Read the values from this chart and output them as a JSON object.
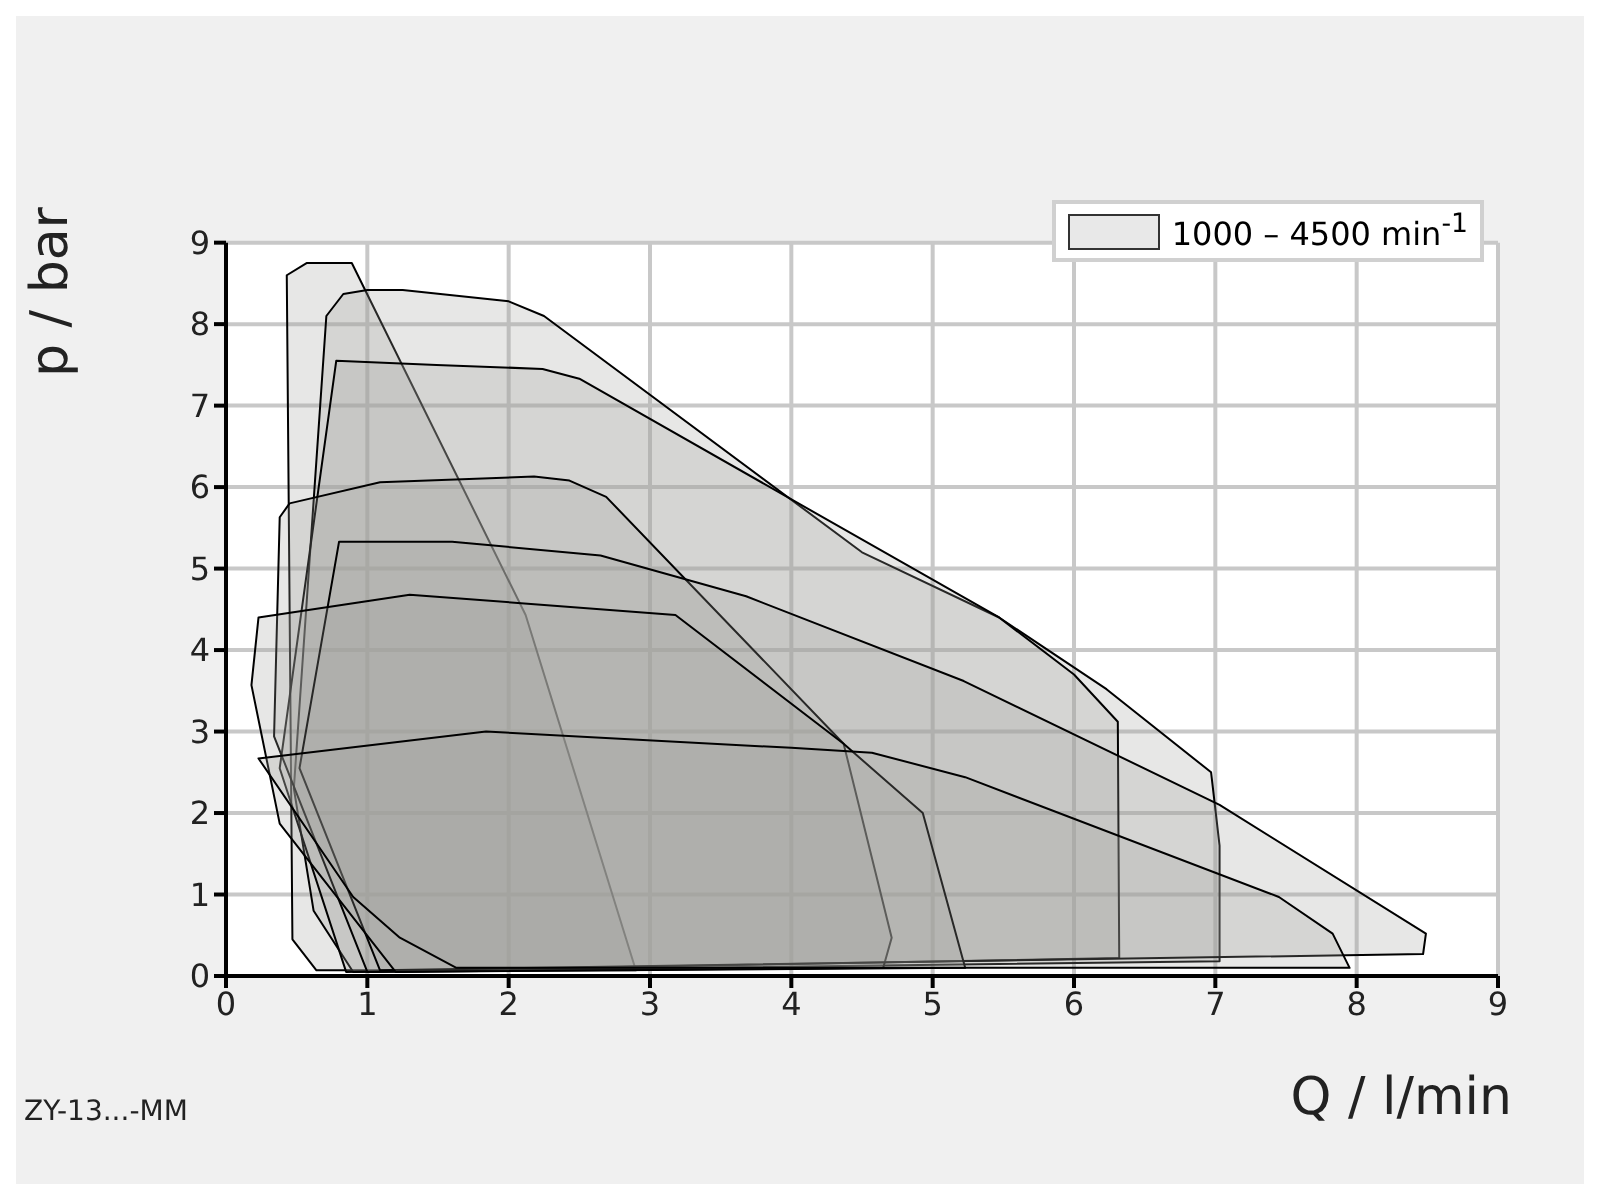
{
  "chart_data": {
    "type": "area",
    "xlabel": "Q / l/min",
    "ylabel": "p / bar",
    "annotations": [
      "ZY-13...-MM"
    ],
    "xlim": [
      0,
      9
    ],
    "ylim": [
      0,
      9
    ],
    "xticks": [
      0,
      1,
      2,
      3,
      4,
      5,
      6,
      7,
      8,
      9
    ],
    "yticks": [
      0,
      1,
      2,
      3,
      4,
      5,
      6,
      7,
      8,
      9
    ],
    "grid": true,
    "legend": "top right",
    "series": [
      {
        "name": "1000 – 4500 min$^{-1}$",
        "color": "#a0a09a",
        "x": [
          0.64,
          0.47,
          0.43,
          0.57,
          0.89,
          2.12,
          2.9
        ],
        "values": [
          0.07,
          0.45,
          8.6,
          8.75,
          8.75,
          4.43,
          0.07
        ]
      },
      {
        "color": "#a0a09a",
        "x": [
          0.9,
          0.62,
          0.48,
          0.71,
          0.83,
          1.0,
          1.25,
          2.0,
          2.25,
          4.5,
          5.47,
          6.23,
          6.97,
          7.03,
          7.03
        ],
        "values": [
          0.05,
          0.8,
          2.3,
          8.1,
          8.37,
          8.42,
          8.42,
          8.28,
          8.1,
          5.2,
          4.4,
          3.52,
          2.5,
          1.6,
          0.18
        ]
      },
      {
        "color": "#a0a09a",
        "x": [
          0.85,
          0.38,
          0.78,
          1.49,
          2.24,
          2.5,
          5.47,
          6.0,
          6.31,
          6.32
        ],
        "values": [
          0.05,
          2.55,
          7.55,
          7.5,
          7.45,
          7.33,
          4.4,
          3.7,
          3.12,
          0.22
        ]
      },
      {
        "color": "#a0a09a",
        "x": [
          1.0,
          0.34,
          0.38,
          0.45,
          1.09,
          2.18,
          2.43,
          2.69,
          4.37,
          4.71,
          4.65
        ],
        "values": [
          0.05,
          2.94,
          5.63,
          5.8,
          6.06,
          6.13,
          6.08,
          5.88,
          2.85,
          0.47,
          0.1
        ]
      },
      {
        "color": "#a0a09a",
        "x": [
          1.09,
          0.52,
          0.8,
          1.6,
          2.65,
          3.68,
          5.22,
          7.03,
          8.49,
          8.47
        ],
        "values": [
          0.07,
          2.55,
          5.33,
          5.33,
          5.16,
          4.66,
          3.62,
          2.1,
          0.52,
          0.27
        ]
      },
      {
        "color": "#a0a09a",
        "x": [
          1.2,
          0.38,
          0.18,
          0.23,
          1.3,
          3.18,
          4.37,
          4.93,
          5.23
        ],
        "values": [
          0.05,
          1.87,
          3.57,
          4.4,
          4.68,
          4.43,
          2.85,
          2.0,
          0.1
        ]
      },
      {
        "color": "#a0a09a",
        "x": [
          1.63,
          1.23,
          0.9,
          0.23,
          1.84,
          4.0,
          4.57,
          5.23,
          7.45,
          7.83,
          7.95
        ],
        "values": [
          0.1,
          0.47,
          0.97,
          2.67,
          3.0,
          2.8,
          2.74,
          2.44,
          0.97,
          0.52,
          0.1
        ]
      }
    ]
  }
}
